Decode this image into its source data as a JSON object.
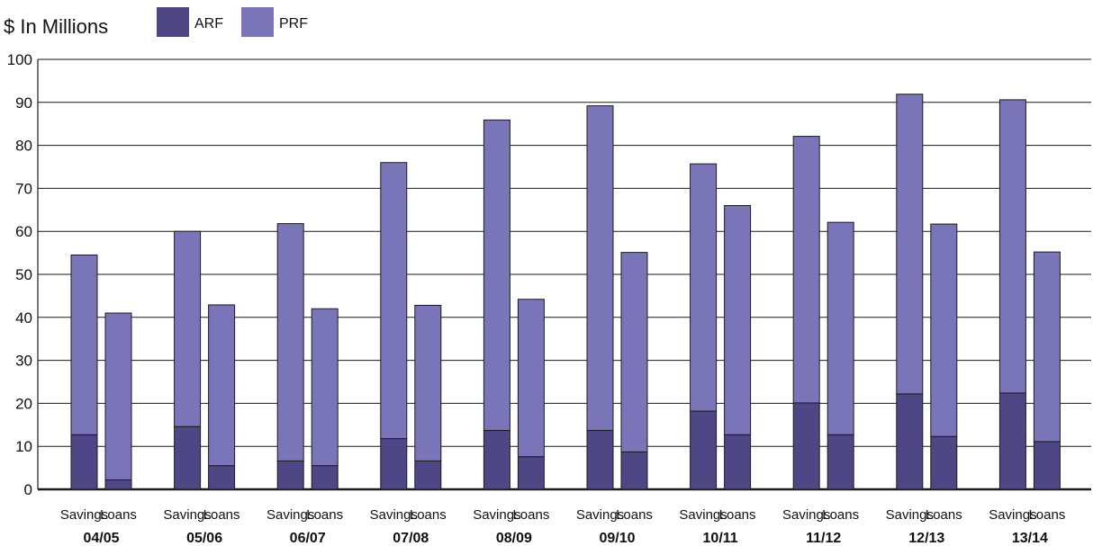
{
  "chart_data": {
    "type": "bar",
    "stacked": true,
    "title": "$ In Millions",
    "legend": {
      "placement": "top-left",
      "items": [
        {
          "name": "ARF",
          "color": "#4f4686"
        },
        {
          "name": "PRF",
          "color": "#7a75b8"
        }
      ]
    },
    "groups": [
      "04/05",
      "05/06",
      "06/07",
      "07/08",
      "08/09",
      "09/10",
      "10/11",
      "11/12",
      "12/13",
      "13/14"
    ],
    "subcategories": [
      "Savings",
      "Loans"
    ],
    "series": [
      {
        "name": "ARF",
        "values": [
          [
            12.7,
            2.2
          ],
          [
            14.6,
            5.5
          ],
          [
            6.6,
            5.5
          ],
          [
            11.8,
            6.6
          ],
          [
            13.7,
            7.6
          ],
          [
            13.7,
            8.7
          ],
          [
            18.2,
            12.7
          ],
          [
            20.1,
            12.7
          ],
          [
            22.2,
            12.3
          ],
          [
            22.4,
            11.1
          ]
        ]
      },
      {
        "name": "PRF",
        "values": [
          [
            41.8,
            38.8
          ],
          [
            45.4,
            37.4
          ],
          [
            55.2,
            36.5
          ],
          [
            64.2,
            36.2
          ],
          [
            72.2,
            36.6
          ],
          [
            75.5,
            46.4
          ],
          [
            57.5,
            53.3
          ],
          [
            62.0,
            49.4
          ],
          [
            69.7,
            49.4
          ],
          [
            68.2,
            44.1
          ]
        ]
      }
    ],
    "ylim": [
      0,
      100
    ],
    "yticks": [
      0,
      10,
      20,
      30,
      40,
      50,
      60,
      70,
      80,
      90,
      100
    ],
    "grid": true
  }
}
